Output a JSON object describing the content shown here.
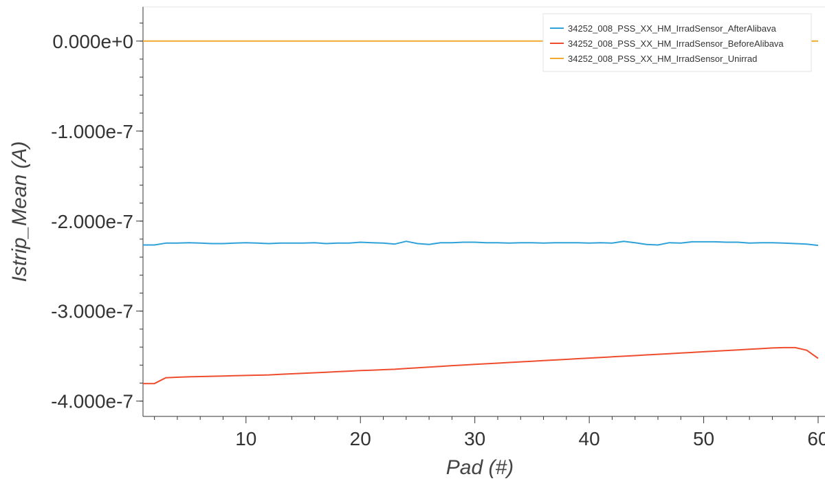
{
  "chart_data": {
    "type": "line",
    "xlabel": "Pad (#)",
    "ylabel": "Istrip_Mean (A)",
    "xlim": [
      1,
      60
    ],
    "ylim": [
      -4.17e-07,
      3.8e-08
    ],
    "x_ticks": [
      10,
      20,
      30,
      40,
      50,
      60
    ],
    "x_tick_labels": [
      "10",
      "20",
      "30",
      "40",
      "50",
      "60"
    ],
    "y_ticks": [
      0,
      -1e-07,
      -2e-07,
      -3e-07,
      -4e-07
    ],
    "y_tick_labels": [
      "0.000e+0",
      "-1.000e-7",
      "-2.000e-7",
      "-3.000e-7",
      "-4.000e-7"
    ],
    "legend_position": "top-right",
    "grid": false,
    "series": [
      {
        "name": "34252_008_PSS_XX_HM_IrradSensor_AfterAlibava",
        "color": "#2ea2d8",
        "x": [
          1,
          2,
          3,
          4,
          5,
          6,
          7,
          8,
          9,
          10,
          11,
          12,
          13,
          14,
          15,
          16,
          17,
          18,
          19,
          20,
          21,
          22,
          23,
          24,
          25,
          26,
          27,
          28,
          29,
          30,
          31,
          32,
          33,
          34,
          35,
          36,
          37,
          38,
          39,
          40,
          41,
          42,
          43,
          44,
          45,
          46,
          47,
          48,
          49,
          50,
          51,
          52,
          53,
          54,
          55,
          56,
          57,
          58,
          59,
          60
        ],
        "y": [
          -2.265e-07,
          -2.265e-07,
          -2.245e-07,
          -2.245e-07,
          -2.24e-07,
          -2.245e-07,
          -2.25e-07,
          -2.25e-07,
          -2.245e-07,
          -2.24e-07,
          -2.245e-07,
          -2.25e-07,
          -2.245e-07,
          -2.245e-07,
          -2.245e-07,
          -2.24e-07,
          -2.25e-07,
          -2.245e-07,
          -2.245e-07,
          -2.235e-07,
          -2.24e-07,
          -2.245e-07,
          -2.255e-07,
          -2.225e-07,
          -2.25e-07,
          -2.26e-07,
          -2.24e-07,
          -2.24e-07,
          -2.235e-07,
          -2.235e-07,
          -2.24e-07,
          -2.24e-07,
          -2.245e-07,
          -2.24e-07,
          -2.24e-07,
          -2.245e-07,
          -2.24e-07,
          -2.24e-07,
          -2.24e-07,
          -2.245e-07,
          -2.24e-07,
          -2.245e-07,
          -2.225e-07,
          -2.24e-07,
          -2.26e-07,
          -2.265e-07,
          -2.24e-07,
          -2.245e-07,
          -2.23e-07,
          -2.23e-07,
          -2.23e-07,
          -2.235e-07,
          -2.235e-07,
          -2.245e-07,
          -2.24e-07,
          -2.24e-07,
          -2.245e-07,
          -2.25e-07,
          -2.255e-07,
          -2.27e-07
        ]
      },
      {
        "name": "34252_008_PSS_XX_HM_IrradSensor_BeforeAlibava",
        "color": "#ee4c2c",
        "x": [
          1,
          2,
          3,
          4,
          5,
          6,
          7,
          8,
          9,
          10,
          11,
          12,
          13,
          14,
          15,
          16,
          17,
          18,
          19,
          20,
          21,
          22,
          23,
          24,
          25,
          26,
          27,
          28,
          29,
          30,
          31,
          32,
          33,
          34,
          35,
          36,
          37,
          38,
          39,
          40,
          41,
          42,
          43,
          44,
          45,
          46,
          47,
          48,
          49,
          50,
          51,
          52,
          53,
          54,
          55,
          56,
          57,
          58,
          59,
          60
        ],
        "y": [
          -3.805e-07,
          -3.805e-07,
          -3.74e-07,
          -3.735e-07,
          -3.73e-07,
          -3.727e-07,
          -3.724e-07,
          -3.721e-07,
          -3.718e-07,
          -3.715e-07,
          -3.712e-07,
          -3.709e-07,
          -3.703e-07,
          -3.697e-07,
          -3.691e-07,
          -3.685e-07,
          -3.679e-07,
          -3.673e-07,
          -3.667e-07,
          -3.661e-07,
          -3.656e-07,
          -3.651e-07,
          -3.646e-07,
          -3.638e-07,
          -3.63e-07,
          -3.622e-07,
          -3.614e-07,
          -3.606e-07,
          -3.599e-07,
          -3.592e-07,
          -3.585e-07,
          -3.578e-07,
          -3.571e-07,
          -3.564e-07,
          -3.557e-07,
          -3.55e-07,
          -3.543e-07,
          -3.536e-07,
          -3.529e-07,
          -3.522e-07,
          -3.515e-07,
          -3.508e-07,
          -3.501e-07,
          -3.494e-07,
          -3.487e-07,
          -3.48e-07,
          -3.473e-07,
          -3.466e-07,
          -3.459e-07,
          -3.452e-07,
          -3.445e-07,
          -3.438e-07,
          -3.431e-07,
          -3.424e-07,
          -3.417e-07,
          -3.41e-07,
          -3.406e-07,
          -3.406e-07,
          -3.435e-07,
          -3.525e-07
        ]
      },
      {
        "name": "34252_008_PSS_XX_HM_IrradSensor_Unirrad",
        "color": "#f0a830",
        "x": [
          1,
          60
        ],
        "y": [
          0,
          0
        ]
      }
    ]
  }
}
